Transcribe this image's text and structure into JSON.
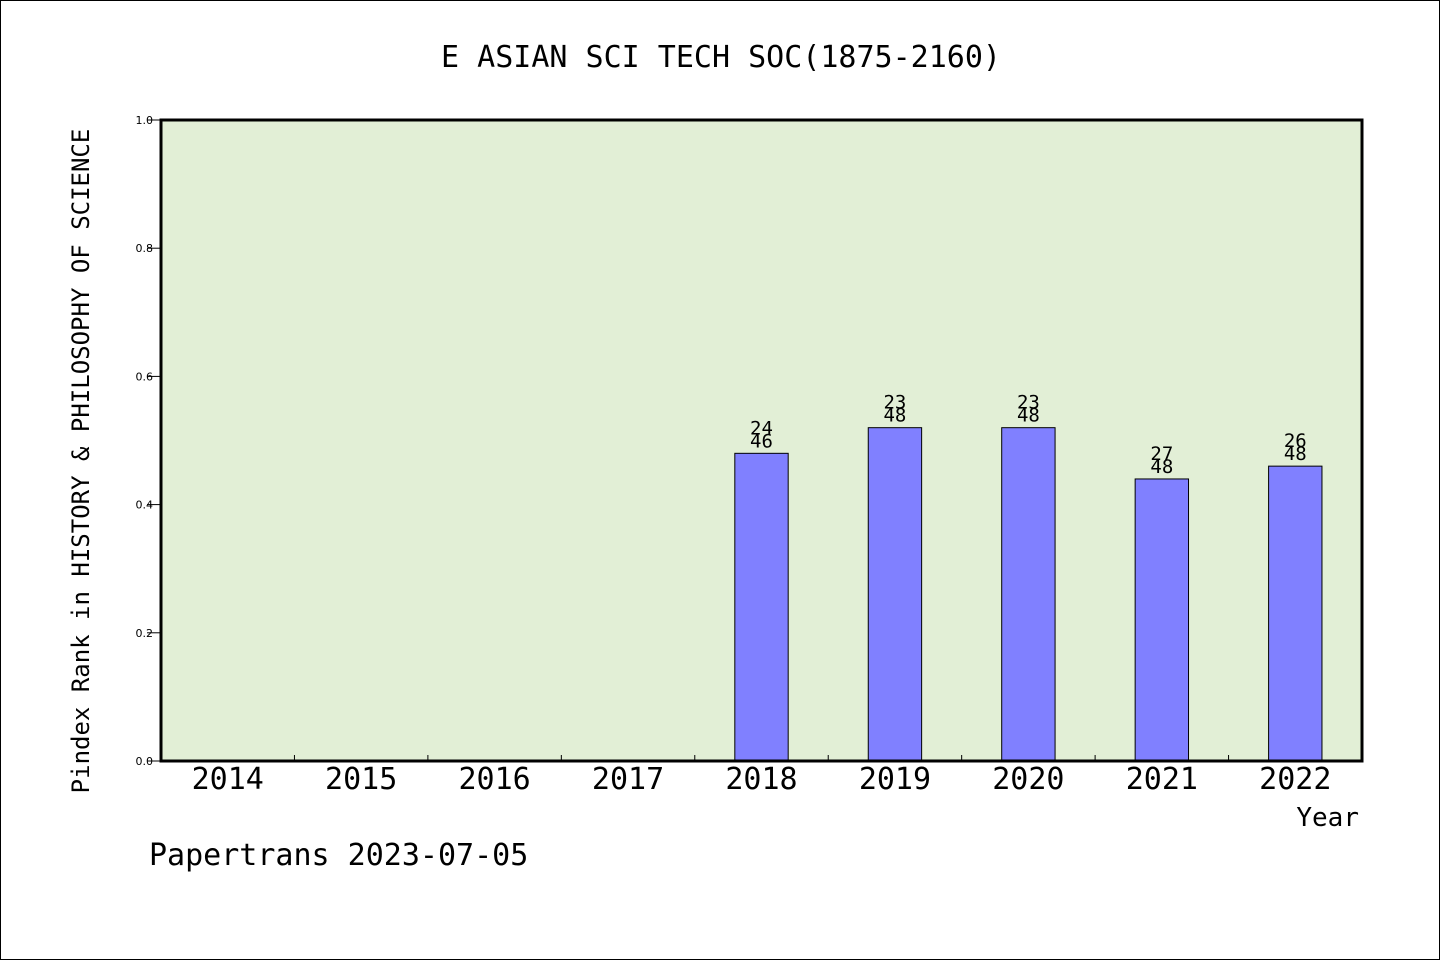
{
  "chart_data": {
    "type": "bar",
    "title": "E ASIAN SCI TECH SOC(1875-2160)",
    "xlabel": "Year",
    "ylabel": "Pindex Rank in HISTORY & PHILOSOPHY OF SCIENCE",
    "footer": "Papertrans 2023-07-05",
    "ylim": [
      0,
      1.0
    ],
    "yticks": [
      "0.0",
      "0.2",
      "0.4",
      "0.6",
      "0.8",
      "1.0"
    ],
    "categories": [
      "2014",
      "2015",
      "2016",
      "2017",
      "2018",
      "2019",
      "2020",
      "2021",
      "2022"
    ],
    "values": [
      null,
      null,
      null,
      null,
      0.48,
      0.52,
      0.52,
      0.44,
      0.46
    ],
    "bar_labels": [
      null,
      null,
      null,
      null,
      {
        "rank": "24",
        "total": "46"
      },
      {
        "rank": "23",
        "total": "48"
      },
      {
        "rank": "23",
        "total": "48"
      },
      {
        "rank": "27",
        "total": "48"
      },
      {
        "rank": "26",
        "total": "48"
      }
    ],
    "grid": false,
    "colors": {
      "plot_background": "#e2efd6",
      "bar_fill": "#8080ff",
      "axis": "#000000"
    }
  }
}
